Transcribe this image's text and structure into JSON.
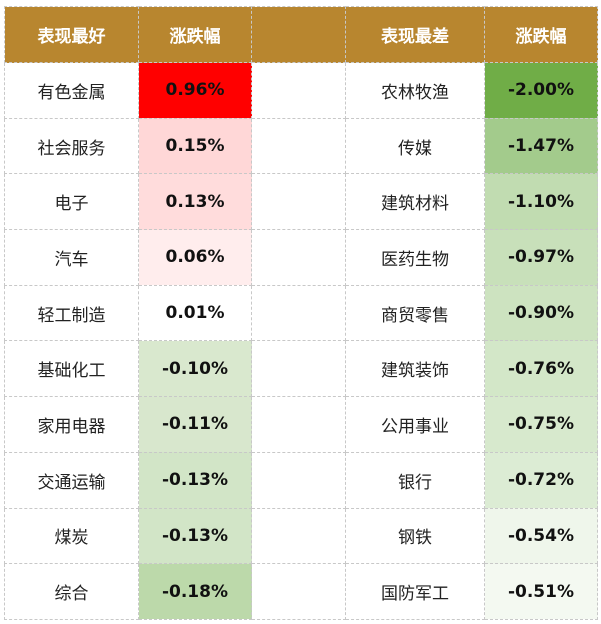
{
  "header": {
    "best_label": "表现最好",
    "change_label_left": "涨跌幅",
    "gap_label": "",
    "worst_label": "表现最差",
    "change_label_right": "涨跌幅"
  },
  "colors": {
    "header_bg": "#b8862f",
    "header_text": "#ffffff"
  },
  "rows": [
    {
      "best_name": "有色金属",
      "best_change": "0.96%",
      "best_color": "#ff0000",
      "worst_name": "农林牧渔",
      "worst_change": "-2.00%",
      "worst_color": "#70ad47"
    },
    {
      "best_name": "社会服务",
      "best_change": "0.15%",
      "best_color": "#ffd7d7",
      "worst_name": "传媒",
      "worst_change": "-1.47%",
      "worst_color": "#a3cb8c"
    },
    {
      "best_name": "电子",
      "best_change": "0.13%",
      "best_color": "#ffdcdc",
      "worst_name": "建筑材料",
      "worst_change": "-1.10%",
      "worst_color": "#c1dcb1"
    },
    {
      "best_name": "汽车",
      "best_change": "0.06%",
      "best_color": "#ffeded",
      "worst_name": "医药生物",
      "worst_change": "-0.97%",
      "worst_color": "#c8e0ba"
    },
    {
      "best_name": "轻工制造",
      "best_change": "0.01%",
      "best_color": "#ffffff",
      "worst_name": "商贸零售",
      "worst_change": "-0.90%",
      "worst_color": "#cde3c0"
    },
    {
      "best_name": "基础化工",
      "best_change": "-0.10%",
      "best_color": "#d9e8ce",
      "worst_name": "建筑装饰",
      "worst_change": "-0.76%",
      "worst_color": "#d3e7c8"
    },
    {
      "best_name": "家用电器",
      "best_change": "-0.11%",
      "best_color": "#d8e7cd",
      "worst_name": "公用事业",
      "worst_change": "-0.75%",
      "worst_color": "#d7e9cd"
    },
    {
      "best_name": "交通运输",
      "best_change": "-0.13%",
      "best_color": "#d2e5c7",
      "worst_name": "银行",
      "worst_change": "-0.72%",
      "worst_color": "#dcecd4"
    },
    {
      "best_name": "煤炭",
      "best_change": "-0.13%",
      "best_color": "#d2e5c7",
      "worst_name": "钢铁",
      "worst_change": "-0.54%",
      "worst_color": "#eff6eb"
    },
    {
      "best_name": "综合",
      "best_change": "-0.18%",
      "best_color": "#bcd9aa",
      "worst_name": "国防军工",
      "worst_change": "-0.51%",
      "worst_color": "#f4f9f1"
    }
  ]
}
